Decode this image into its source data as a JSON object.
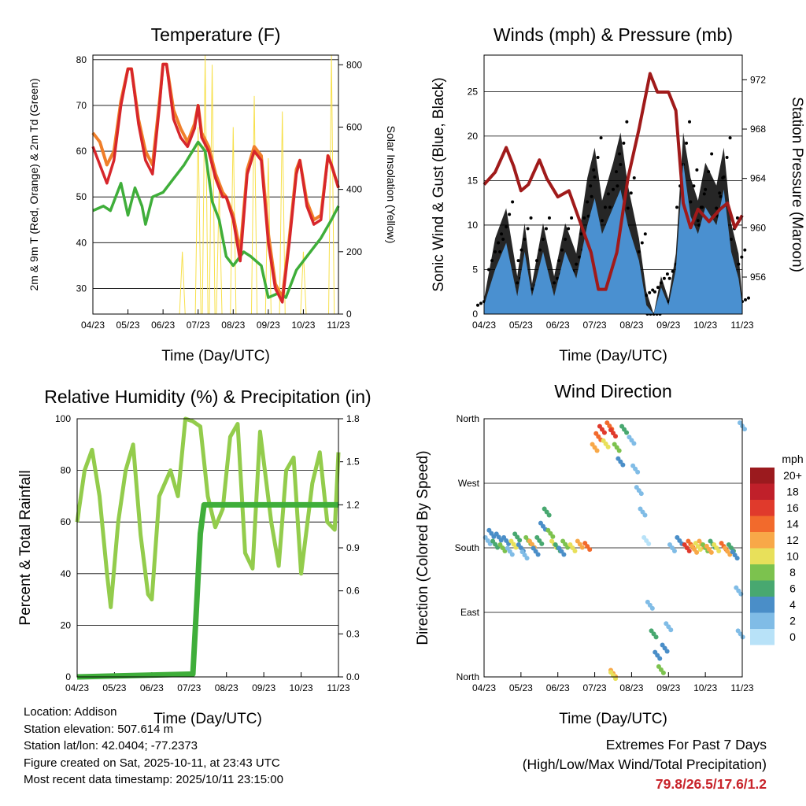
{
  "chart_data": [
    {
      "type": "line",
      "title": "Temperature (F)",
      "xlabel": "Time (Day/UTC)",
      "ylabel": "2m & 9m T (Red, Orange) & 2m Td (Green)",
      "y2label": "Solar Insolation (Yellow)",
      "x_ticks": [
        "04/23",
        "05/23",
        "06/23",
        "07/23",
        "08/23",
        "09/23",
        "10/23",
        "11/23"
      ],
      "y_ticks": [
        30,
        40,
        50,
        60,
        70,
        80
      ],
      "y2_ticks": [
        0,
        200,
        400,
        600,
        800
      ],
      "ylim": [
        24.4,
        81
      ],
      "y2lim": [
        0,
        831
      ],
      "grid": true,
      "series": [
        {
          "name": "9m T",
          "color": "#f07f2a",
          "x": [
            0,
            0.2,
            0.4,
            0.6,
            0.8,
            1.0,
            1.1,
            1.3,
            1.5,
            1.7,
            1.9,
            2.0,
            2.1,
            2.3,
            2.5,
            2.7,
            2.9,
            3.0,
            3.1,
            3.3,
            3.5,
            3.7,
            3.8,
            4.0,
            4.2,
            4.4,
            4.6,
            4.8,
            5.0,
            5.2,
            5.4,
            5.6,
            5.8,
            5.9,
            6.1,
            6.3,
            6.5,
            6.7,
            6.8,
            7.0
          ],
          "y": [
            64,
            62,
            57,
            60,
            71,
            78,
            78,
            67,
            60,
            57,
            71,
            79,
            79,
            69,
            65,
            62,
            66,
            70,
            64,
            61,
            55,
            51,
            50,
            46,
            38,
            56,
            61,
            59,
            42,
            31,
            28,
            41,
            56,
            58,
            49,
            45,
            46,
            59,
            57,
            52
          ]
        },
        {
          "name": "2m T",
          "color": "#d7262b",
          "x": [
            0,
            0.2,
            0.4,
            0.6,
            0.8,
            1.0,
            1.1,
            1.3,
            1.5,
            1.7,
            1.9,
            2.0,
            2.1,
            2.3,
            2.5,
            2.7,
            2.9,
            3.0,
            3.1,
            3.3,
            3.5,
            3.7,
            3.8,
            4.0,
            4.2,
            4.4,
            4.6,
            4.8,
            5.0,
            5.2,
            5.4,
            5.6,
            5.8,
            5.9,
            6.1,
            6.3,
            6.5,
            6.7,
            6.8,
            7.0
          ],
          "y": [
            61,
            57,
            53,
            58,
            70,
            78,
            78,
            66,
            58,
            55,
            70,
            79,
            79,
            67,
            63,
            61,
            65,
            70,
            63,
            60,
            54,
            50,
            50,
            45,
            36,
            55,
            60,
            58,
            40,
            30,
            27,
            40,
            55,
            58,
            48,
            44,
            45,
            59,
            57,
            52
          ]
        },
        {
          "name": "2m Td",
          "color": "#3fae3a",
          "x": [
            0,
            0.3,
            0.5,
            0.8,
            1.0,
            1.2,
            1.4,
            1.5,
            1.7,
            2.0,
            2.3,
            2.6,
            3.0,
            3.2,
            3.4,
            3.6,
            3.8,
            4.0,
            4.3,
            4.5,
            4.8,
            5.0,
            5.3,
            5.5,
            5.8,
            6.2,
            6.5,
            6.8,
            7.0
          ],
          "y": [
            47,
            48,
            47,
            53,
            46,
            52,
            48,
            44,
            50,
            51,
            54,
            57,
            62,
            60,
            49,
            45,
            37,
            35,
            38,
            37,
            35,
            28,
            29,
            28,
            34,
            38,
            41,
            45,
            48
          ]
        },
        {
          "name": "Solar Insolation",
          "axis": "y2",
          "color": "#f7e04b",
          "peaks_x": [
            2.55,
            3.0,
            3.2,
            3.4,
            3.6,
            4.0,
            4.6,
            5.0,
            5.4,
            6.0,
            6.8
          ],
          "peaks_y": [
            200,
            600,
            830,
            800,
            400,
            600,
            700,
            500,
            650,
            200,
            830
          ]
        }
      ]
    },
    {
      "type": "line",
      "title": "Winds (mph) & Pressure (mb)",
      "xlabel": "Time (Day/UTC)",
      "ylabel": "Sonic Wind & Gust (Blue, Black)",
      "y2label": "Station Pressure (Maroon)",
      "x_ticks": [
        "04/23",
        "05/23",
        "06/23",
        "07/23",
        "08/23",
        "09/23",
        "10/23",
        "11/23"
      ],
      "y_ticks": [
        0,
        5,
        10,
        15,
        20,
        25
      ],
      "y2_ticks": [
        956,
        960,
        964,
        968,
        972
      ],
      "ylim": [
        0,
        29.1
      ],
      "y2lim": [
        953,
        974
      ],
      "grid": true,
      "series": [
        {
          "name": "Gust",
          "color": "#000000",
          "x": [
            0,
            0.3,
            0.6,
            0.9,
            1.1,
            1.3,
            1.6,
            1.9,
            2.2,
            2.5,
            2.8,
            3.0,
            3.2,
            3.5,
            3.7,
            3.9,
            4.2,
            4.4,
            4.6,
            4.8,
            5.0,
            5.2,
            5.4,
            5.6,
            5.8,
            6.0,
            6.3,
            6.5,
            6.7,
            6.9,
            7.0
          ],
          "y": [
            2,
            10,
            14,
            5,
            12,
            4,
            12,
            5,
            12,
            8,
            18,
            22,
            15,
            20,
            24,
            17,
            10,
            3,
            0,
            5,
            2,
            8,
            24,
            18,
            15,
            20,
            17,
            22,
            12,
            8,
            2
          ]
        },
        {
          "name": "Wind",
          "color": "#4a90d0",
          "x": [
            0,
            0.3,
            0.6,
            0.9,
            1.1,
            1.3,
            1.6,
            1.9,
            2.2,
            2.5,
            2.8,
            3.0,
            3.2,
            3.5,
            3.7,
            3.9,
            4.2,
            4.4,
            4.6,
            4.8,
            5.0,
            5.2,
            5.4,
            5.6,
            5.8,
            6.0,
            6.3,
            6.5,
            6.7,
            6.9,
            7.0
          ],
          "y": [
            1,
            5,
            8,
            2,
            7,
            2,
            7,
            2,
            7,
            4,
            10,
            13,
            9,
            12,
            14,
            10,
            6,
            1,
            0,
            3,
            1,
            5,
            17,
            11,
            9,
            12,
            10,
            14,
            7,
            4,
            1
          ]
        },
        {
          "name": "Pressure",
          "axis": "y2",
          "color": "#a01a1a",
          "x": [
            0,
            0.3,
            0.6,
            0.8,
            1.0,
            1.2,
            1.5,
            1.7,
            2.0,
            2.3,
            2.6,
            2.9,
            3.1,
            3.3,
            3.6,
            3.9,
            4.2,
            4.5,
            4.7,
            5.0,
            5.2,
            5.4,
            5.6,
            5.8,
            6.1,
            6.4,
            6.6,
            6.8,
            7.0
          ],
          "y": [
            963.5,
            964.5,
            966.5,
            965,
            963,
            963.5,
            965.5,
            964,
            962.5,
            963,
            960.5,
            958,
            955,
            955,
            958,
            964,
            968,
            972.5,
            971,
            971,
            969.5,
            962,
            960,
            961.5,
            960.5,
            961.5,
            962,
            960,
            961
          ]
        }
      ]
    },
    {
      "type": "line",
      "title": "Relative Humidity (%) & Precipitation (in)",
      "xlabel": "Time (Day/UTC)",
      "ylabel": "Percent & Total Rainfall",
      "x_ticks": [
        "04/23",
        "05/23",
        "06/23",
        "07/23",
        "08/23",
        "09/23",
        "10/23",
        "11/23"
      ],
      "y_ticks": [
        0,
        20,
        40,
        60,
        80,
        100
      ],
      "y2_ticks": [
        "0.0",
        "0.3",
        "0.6",
        "0.9",
        "1.2",
        "1.5",
        "1.8"
      ],
      "ylim": [
        0,
        100
      ],
      "y2lim": [
        0,
        1.8
      ],
      "grid": true,
      "series": [
        {
          "name": "Relative Humidity",
          "color": "#93cc4c",
          "x": [
            0,
            0.2,
            0.4,
            0.6,
            0.8,
            0.9,
            1.1,
            1.3,
            1.5,
            1.7,
            1.9,
            2.0,
            2.2,
            2.5,
            2.7,
            2.9,
            3.1,
            3.3,
            3.5,
            3.7,
            3.9,
            4.1,
            4.3,
            4.5,
            4.7,
            4.9,
            5.2,
            5.4,
            5.6,
            5.8,
            6.0,
            6.3,
            6.5,
            6.7,
            6.9,
            7.0
          ],
          "y": [
            60,
            80,
            88,
            70,
            40,
            27,
            60,
            80,
            90,
            55,
            32,
            30,
            70,
            80,
            70,
            100,
            99,
            97,
            70,
            58,
            65,
            93,
            98,
            48,
            42,
            95,
            60,
            43,
            80,
            85,
            40,
            75,
            87,
            60,
            57,
            87
          ]
        },
        {
          "name": "Total Precipitation",
          "axis": "y2",
          "color": "#3fae3a",
          "x": [
            0,
            3.1,
            3.2,
            3.3,
            3.4,
            7.0
          ],
          "y": [
            0,
            0.02,
            0.5,
            1.0,
            1.2,
            1.2
          ]
        }
      ]
    },
    {
      "type": "scatter",
      "title": "Wind Direction",
      "xlabel": "Time (Day/UTC)",
      "ylabel": "Direction (Colored By Speed)",
      "x_ticks": [
        "04/23",
        "05/23",
        "06/23",
        "07/23",
        "08/23",
        "09/23",
        "10/23",
        "11/23"
      ],
      "y_ticks": [
        {
          "label": "North",
          "deg": 0
        },
        {
          "label": "East",
          "deg": 90
        },
        {
          "label": "South",
          "deg": 180
        },
        {
          "label": "West",
          "deg": 270
        },
        {
          "label": "North",
          "deg": 360
        }
      ],
      "ylim": [
        0,
        360
      ],
      "grid": true,
      "legend": {
        "title": "mph",
        "position": "right",
        "labels": [
          "20+",
          "18",
          "16",
          "14",
          "12",
          "10",
          "8",
          "6",
          "4",
          "2",
          "0"
        ],
        "colors": [
          "#9b1a1e",
          "#c0202a",
          "#e03a2c",
          "#f26a2c",
          "#f8a848",
          "#e8e05a",
          "#7cc24e",
          "#48a870",
          "#4a8ec8",
          "#80bce6",
          "#b8e2f8"
        ]
      },
      "points": [
        [
          0.1,
          190,
          2
        ],
        [
          0.2,
          200,
          4
        ],
        [
          0.3,
          185,
          6
        ],
        [
          0.4,
          195,
          3
        ],
        [
          0.5,
          180,
          8
        ],
        [
          0.6,
          190,
          4
        ],
        [
          0.7,
          175,
          2
        ],
        [
          0.8,
          185,
          10
        ],
        [
          0.9,
          195,
          6
        ],
        [
          1.0,
          180,
          4
        ],
        [
          1.1,
          170,
          2
        ],
        [
          1.2,
          190,
          8
        ],
        [
          1.3,
          185,
          12
        ],
        [
          1.4,
          175,
          4
        ],
        [
          1.5,
          190,
          6
        ],
        [
          1.6,
          210,
          4
        ],
        [
          1.7,
          230,
          6
        ],
        [
          1.8,
          200,
          8
        ],
        [
          1.9,
          185,
          10
        ],
        [
          2.0,
          180,
          6
        ],
        [
          2.1,
          175,
          4
        ],
        [
          2.2,
          185,
          8
        ],
        [
          2.4,
          180,
          10
        ],
        [
          2.6,
          185,
          12
        ],
        [
          2.8,
          182,
          14
        ],
        [
          3.0,
          320,
          12
        ],
        [
          3.1,
          335,
          14
        ],
        [
          3.2,
          345,
          16
        ],
        [
          3.3,
          325,
          10
        ],
        [
          3.4,
          350,
          14
        ],
        [
          3.5,
          340,
          16
        ],
        [
          3.6,
          320,
          8
        ],
        [
          3.7,
          300,
          4
        ],
        [
          3.8,
          345,
          6
        ],
        [
          4.0,
          330,
          2
        ],
        [
          4.1,
          290,
          2
        ],
        [
          4.2,
          260,
          2
        ],
        [
          4.3,
          230,
          1
        ],
        [
          4.4,
          190,
          0
        ],
        [
          4.5,
          100,
          2
        ],
        [
          4.6,
          60,
          6
        ],
        [
          4.7,
          30,
          4
        ],
        [
          4.8,
          10,
          8
        ],
        [
          4.9,
          40,
          4
        ],
        [
          5.0,
          70,
          2
        ],
        [
          5.1,
          180,
          2
        ],
        [
          5.3,
          190,
          4
        ],
        [
          5.5,
          180,
          16
        ],
        [
          5.6,
          185,
          14
        ],
        [
          5.7,
          178,
          12
        ],
        [
          5.8,
          182,
          10
        ],
        [
          5.9,
          185,
          12
        ],
        [
          6.0,
          180,
          8
        ],
        [
          6.1,
          178,
          12
        ],
        [
          6.2,
          185,
          6
        ],
        [
          6.3,
          180,
          10
        ],
        [
          6.5,
          182,
          14
        ],
        [
          6.6,
          175,
          12
        ],
        [
          6.7,
          180,
          6
        ],
        [
          6.8,
          170,
          4
        ],
        [
          6.9,
          120,
          2
        ],
        [
          6.95,
          60,
          1
        ],
        [
          7.0,
          350,
          1
        ],
        [
          3.5,
          5,
          12
        ],
        [
          3.5,
          2,
          10
        ]
      ]
    }
  ],
  "info": {
    "location": "Location: Addison",
    "elevation": "Station elevation: 507.614 m",
    "latlon": "Station lat/lon: 42.0404; -77.2373",
    "created": "Figure created on Sat, 2025-10-11, at 23:43 UTC",
    "timestamp": "Most recent data timestamp: 2025/10/11 23:15:00"
  },
  "extremes": {
    "title": "Extremes For Past 7 Days",
    "subtitle": "(High/Low/Max Wind/Total Precipitation)",
    "values": "79.8/26.5/17.6/1.2",
    "values_color": "#c8242b"
  }
}
